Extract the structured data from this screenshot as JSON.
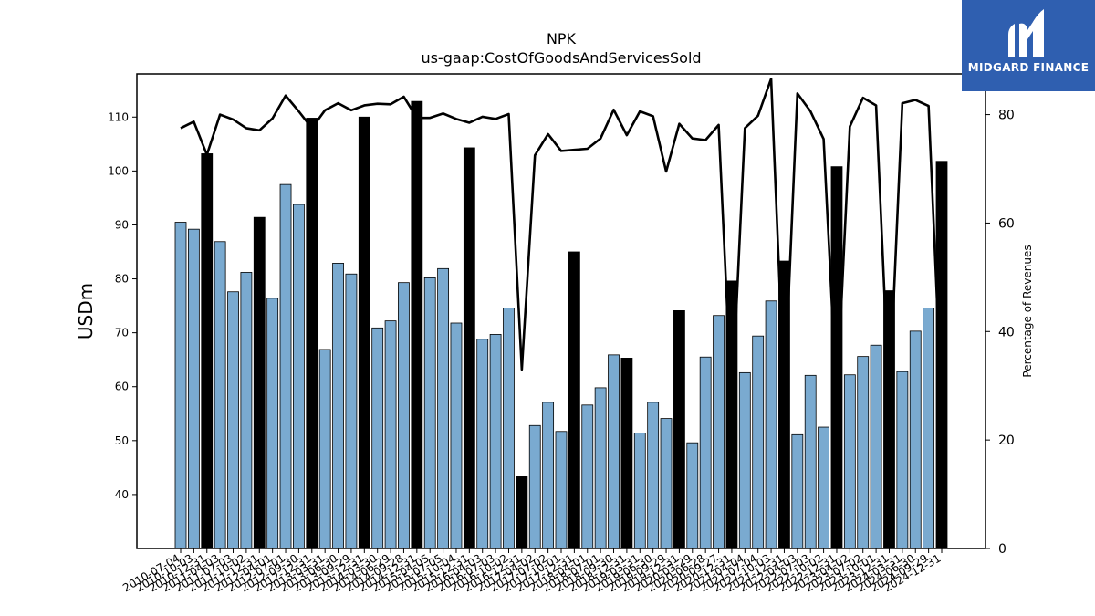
{
  "brand": {
    "name": "MIDGARD FINANCE",
    "icon": "midgard-logo-icon",
    "color": "#2f5fb0"
  },
  "chart_data": {
    "type": "bar",
    "title": "NPK",
    "subtitle": "us-gaap:CostOfGoodsAndServicesSold",
    "ylabel": "USDm",
    "y2label": "Percentage of Revenues",
    "ylim": [
      30,
      118
    ],
    "y2lim": [
      0,
      87.5
    ],
    "y_ticks": [
      40,
      50,
      60,
      70,
      80,
      90,
      100,
      110
    ],
    "y2_ticks": [
      0,
      20,
      40,
      60,
      80
    ],
    "grid": false,
    "colors": {
      "quarterly_bar": "#7aaad0",
      "annual_bar": "#000000",
      "line": "#000000"
    },
    "categories": [
      "2010-07-04",
      "2010-10-03",
      "2010-12-31",
      "2011-04-03",
      "2011-07-03",
      "2011-10-02",
      "2011-12-31",
      "2012-04-01",
      "2012-07-01",
      "2012-09-30",
      "2012-12-31",
      "2013-03-31",
      "2013-06-30",
      "2013-09-29",
      "2013-12-31",
      "2014-03-30",
      "2014-06-29",
      "2014-09-28",
      "2014-12-31",
      "2015-04-05",
      "2015-07-05",
      "2015-10-04",
      "2015-12-31",
      "2016-04-03",
      "2016-07-03",
      "2016-10-02",
      "2016-12-31",
      "2017-04-02",
      "2017-07-02",
      "2017-10-01",
      "2017-12-31",
      "2018-04-01",
      "2018-07-01",
      "2018-09-30",
      "2018-12-31",
      "2019-03-31",
      "2019-06-30",
      "2019-09-29",
      "2019-12-31",
      "2020-03-29",
      "2020-06-28",
      "2020-09-27",
      "2020-12-31",
      "2021-04-04",
      "2021-07-04",
      "2021-10-03",
      "2021-12-31",
      "2022-04-03",
      "2022-07-03",
      "2022-10-02",
      "2022-12-31",
      "2023-04-02",
      "2023-07-02",
      "2023-10-01",
      "2023-12-31",
      "2024-03-31",
      "2024-06-30",
      "2024-09-29",
      "2024-12-31"
    ],
    "series": [
      {
        "name": "",
        "axis": "left",
        "values": [
          90.5,
          89.2,
          103.2,
          86.9,
          77.6,
          81.2,
          91.4,
          76.4,
          97.5,
          93.8,
          109.8,
          66.9,
          82.9,
          80.9,
          110.0,
          70.9,
          72.2,
          79.3,
          112.9,
          80.2,
          81.9,
          71.8,
          104.3,
          68.8,
          69.7,
          74.6,
          43.3,
          52.8,
          57.1,
          51.7,
          85.0,
          56.6,
          59.8,
          65.9,
          65.3,
          51.4,
          57.1,
          54.1,
          74.1,
          49.6,
          65.5,
          73.2,
          79.6,
          62.6,
          69.4,
          75.9,
          83.3,
          51.1,
          62.1,
          52.5,
          100.8,
          62.2,
          65.6,
          67.7,
          77.8,
          62.8,
          70.3,
          74.6,
          101.8
        ],
        "annual": [
          false,
          false,
          true,
          false,
          false,
          false,
          true,
          false,
          false,
          false,
          true,
          false,
          false,
          false,
          true,
          false,
          false,
          false,
          true,
          false,
          false,
          false,
          true,
          false,
          false,
          false,
          true,
          false,
          false,
          false,
          true,
          false,
          false,
          false,
          true,
          false,
          false,
          false,
          true,
          false,
          false,
          false,
          true,
          false,
          false,
          false,
          true,
          false,
          false,
          false,
          true,
          false,
          false,
          false,
          true,
          false,
          false,
          false,
          true
        ]
      },
      {
        "name": "",
        "axis": "right",
        "type": "line",
        "values": [
          77.5,
          78.7,
          72.6,
          80.0,
          79.1,
          77.5,
          77.1,
          79.3,
          83.5,
          80.6,
          77.5,
          80.8,
          82.1,
          80.8,
          81.7,
          82.0,
          81.9,
          83.3,
          79.4,
          79.4,
          80.2,
          79.2,
          78.5,
          79.6,
          79.2,
          80.1,
          33.0,
          72.5,
          76.4,
          73.3,
          73.5,
          73.7,
          75.6,
          80.9,
          76.2,
          80.6,
          79.7,
          69.5,
          78.3,
          75.6,
          75.3,
          78.1,
          26.1,
          77.5,
          79.8,
          86.6,
          27.7,
          83.9,
          80.6,
          75.5,
          27.1,
          77.8,
          83.1,
          81.7,
          27.1,
          82.1,
          82.7,
          81.6,
          25.7
        ]
      }
    ]
  }
}
